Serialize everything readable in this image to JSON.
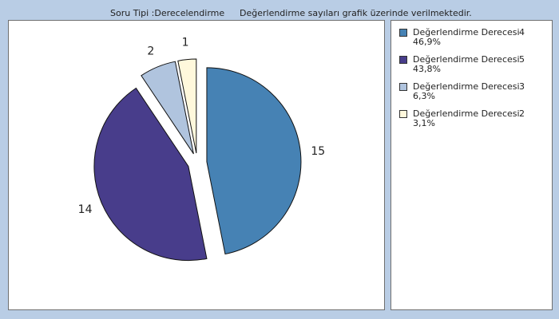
{
  "header": {
    "question_type": "Soru Tipi :Derecelendirme",
    "note": "Değerlendirme sayıları grafik üzerinde verilmektedir."
  },
  "chart_data": {
    "type": "pie",
    "exploded": true,
    "slices": [
      {
        "label": "Değerlendirme Derecesi",
        "code": "4",
        "value": 15,
        "percent": "46,9%",
        "color": "#4682b4"
      },
      {
        "label": "Değerlendirme Derecesi",
        "code": "5",
        "value": 14,
        "percent": "43,8%",
        "color": "#483d8b"
      },
      {
        "label": "Değerlendirme Derecesi",
        "code": "3",
        "value": 2,
        "percent": "6,3%",
        "color": "#b0c4de"
      },
      {
        "label": "Değerlendirme Derecesi",
        "code": "2",
        "value": 1,
        "percent": "3,1%",
        "color": "#fff8dc"
      }
    ],
    "legend_position": "right"
  }
}
